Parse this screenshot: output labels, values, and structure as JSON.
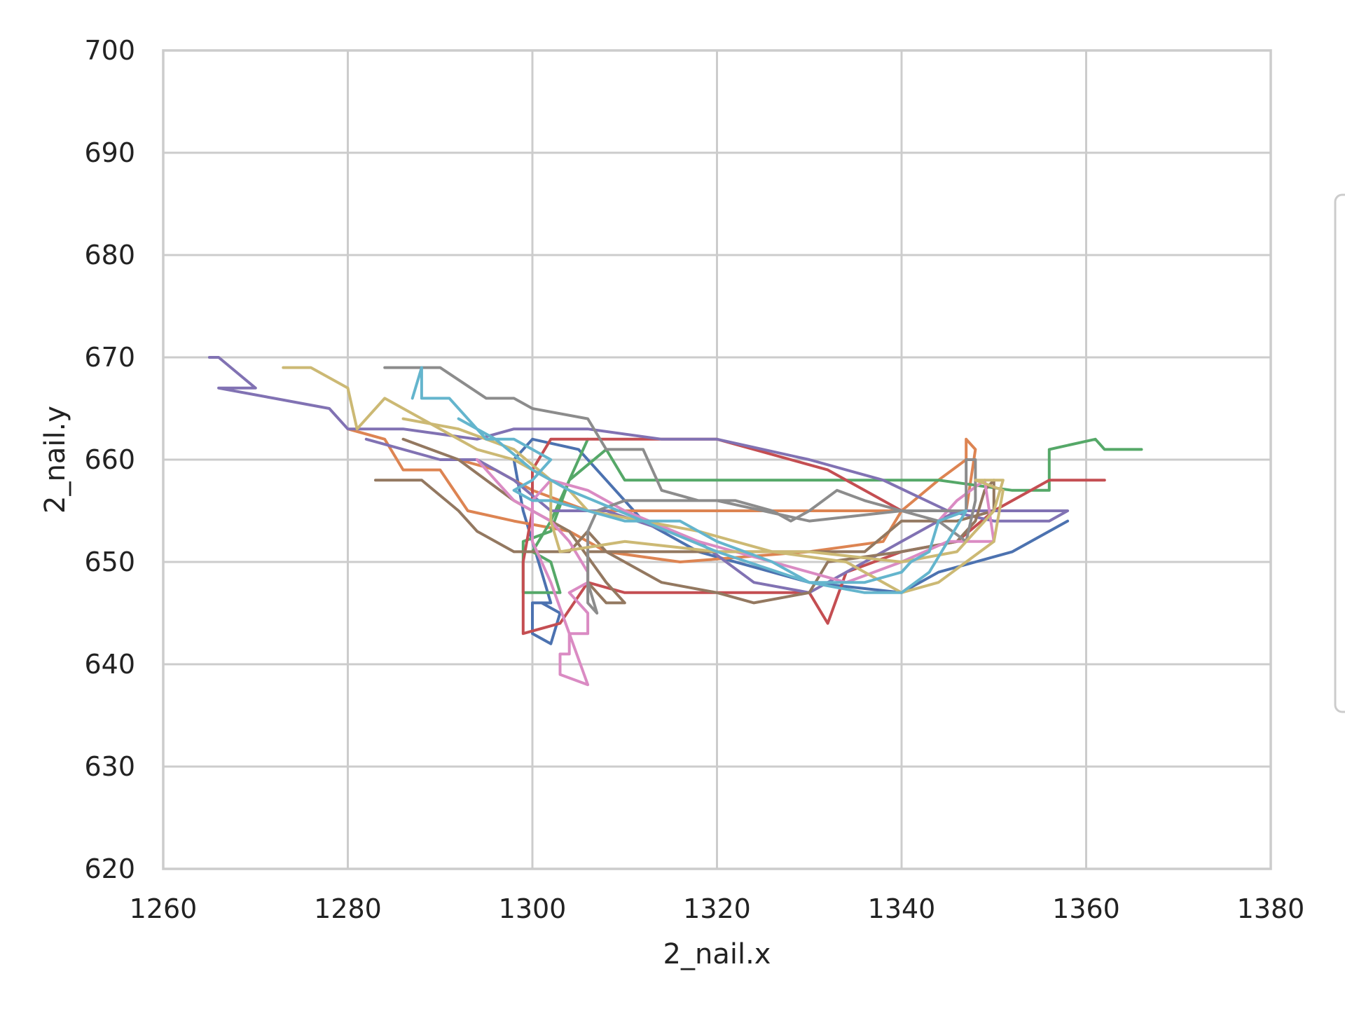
{
  "chart_data": {
    "type": "line",
    "title": "",
    "xlabel": "2_nail.x",
    "ylabel": "2_nail.y",
    "xlim": [
      1260,
      1380
    ],
    "ylim": [
      620,
      700
    ],
    "xticks": [
      1260,
      1280,
      1300,
      1320,
      1340,
      1360,
      1380
    ],
    "yticks": [
      620,
      630,
      640,
      650,
      660,
      670,
      680,
      690,
      700
    ],
    "xtick_labels": [
      "1260",
      "1280",
      "1300",
      "1320",
      "1340",
      "1360",
      "1380"
    ],
    "ytick_labels": [
      "620",
      "630",
      "640",
      "650",
      "660",
      "670",
      "680",
      "690",
      "700"
    ],
    "grid": true,
    "legend_position": "right (entries cropped, not readable)",
    "colors": [
      "#4c72b0",
      "#dd8452",
      "#55a868",
      "#c44e52",
      "#8172b3",
      "#937860",
      "#da8bc3",
      "#8c8c8c",
      "#ccb974",
      "#64b5cd"
    ],
    "series": [
      {
        "color": "#4c72b0",
        "points": [
          [
            1358,
            654
          ],
          [
            1352,
            651
          ],
          [
            1348,
            650
          ],
          [
            1344,
            649
          ],
          [
            1340,
            647
          ],
          [
            1330,
            648
          ],
          [
            1318,
            651
          ],
          [
            1312,
            654
          ],
          [
            1308,
            658
          ],
          [
            1305,
            661
          ],
          [
            1300,
            662
          ],
          [
            1298,
            660
          ],
          [
            1299,
            655
          ],
          [
            1301,
            649
          ],
          [
            1302,
            646
          ],
          [
            1300,
            646
          ],
          [
            1300,
            643
          ],
          [
            1302,
            642
          ],
          [
            1303,
            645
          ],
          [
            1301,
            646
          ]
        ]
      },
      {
        "color": "#dd8452",
        "points": [
          [
            1280,
            663
          ],
          [
            1284,
            662
          ],
          [
            1286,
            659
          ],
          [
            1290,
            659
          ],
          [
            1293,
            655
          ],
          [
            1298,
            654
          ],
          [
            1304,
            653
          ],
          [
            1308,
            651
          ],
          [
            1316,
            650
          ],
          [
            1330,
            651
          ],
          [
            1338,
            652
          ],
          [
            1340,
            655
          ],
          [
            1344,
            658
          ],
          [
            1347,
            660
          ],
          [
            1347,
            662
          ],
          [
            1348,
            661
          ],
          [
            1347,
            655
          ],
          [
            1340,
            655
          ],
          [
            1320,
            655
          ],
          [
            1306,
            655
          ],
          [
            1300,
            657
          ],
          [
            1296,
            659
          ],
          [
            1292,
            660
          ]
        ]
      },
      {
        "color": "#55a868",
        "points": [
          [
            1366,
            661
          ],
          [
            1362,
            661
          ],
          [
            1361,
            662
          ],
          [
            1356,
            661
          ],
          [
            1356,
            657
          ],
          [
            1352,
            657
          ],
          [
            1344,
            658
          ],
          [
            1340,
            658
          ],
          [
            1330,
            658
          ],
          [
            1320,
            658
          ],
          [
            1310,
            658
          ],
          [
            1308,
            661
          ],
          [
            1304,
            658
          ],
          [
            1302,
            653
          ],
          [
            1299,
            652
          ],
          [
            1299,
            647
          ],
          [
            1303,
            647
          ],
          [
            1302,
            650
          ],
          [
            1300,
            651
          ],
          [
            1302,
            654
          ],
          [
            1304,
            658
          ],
          [
            1306,
            662
          ]
        ]
      },
      {
        "color": "#c44e52",
        "points": [
          [
            1362,
            658
          ],
          [
            1359,
            658
          ],
          [
            1356,
            658
          ],
          [
            1350,
            655
          ],
          [
            1346,
            655
          ],
          [
            1340,
            655
          ],
          [
            1338,
            656
          ],
          [
            1332,
            659
          ],
          [
            1320,
            662
          ],
          [
            1310,
            662
          ],
          [
            1302,
            662
          ],
          [
            1300,
            659
          ],
          [
            1300,
            655
          ],
          [
            1299,
            650
          ],
          [
            1299,
            646
          ],
          [
            1299,
            643
          ],
          [
            1303,
            644
          ],
          [
            1306,
            648
          ],
          [
            1310,
            647
          ],
          [
            1320,
            647
          ],
          [
            1330,
            647
          ],
          [
            1332,
            644
          ],
          [
            1334,
            649
          ],
          [
            1340,
            651
          ],
          [
            1346,
            652
          ],
          [
            1350,
            655
          ]
        ]
      },
      {
        "color": "#8172b3",
        "points": [
          [
            1265,
            670
          ],
          [
            1266,
            670
          ],
          [
            1270,
            667
          ],
          [
            1266,
            667
          ],
          [
            1272,
            666
          ],
          [
            1278,
            665
          ],
          [
            1280,
            663
          ],
          [
            1286,
            663
          ],
          [
            1294,
            662
          ],
          [
            1298,
            663
          ],
          [
            1306,
            663
          ],
          [
            1314,
            662
          ],
          [
            1320,
            662
          ],
          [
            1330,
            660
          ],
          [
            1338,
            658
          ],
          [
            1345,
            655
          ],
          [
            1350,
            654
          ],
          [
            1356,
            654
          ],
          [
            1358,
            655
          ],
          [
            1346,
            655
          ],
          [
            1340,
            652
          ],
          [
            1334,
            649
          ],
          [
            1330,
            647
          ],
          [
            1324,
            648
          ],
          [
            1318,
            652
          ],
          [
            1308,
            655
          ],
          [
            1302,
            655
          ],
          [
            1298,
            658
          ],
          [
            1294,
            660
          ],
          [
            1290,
            660
          ],
          [
            1282,
            662
          ]
        ]
      },
      {
        "color": "#937860",
        "points": [
          [
            1283,
            658
          ],
          [
            1288,
            658
          ],
          [
            1292,
            655
          ],
          [
            1294,
            653
          ],
          [
            1298,
            651
          ],
          [
            1300,
            651
          ],
          [
            1304,
            651
          ],
          [
            1306,
            653
          ],
          [
            1308,
            651
          ],
          [
            1310,
            650
          ],
          [
            1314,
            648
          ],
          [
            1320,
            647
          ],
          [
            1324,
            646
          ],
          [
            1330,
            647
          ],
          [
            1332,
            650
          ],
          [
            1340,
            651
          ],
          [
            1346,
            652
          ],
          [
            1348,
            654
          ],
          [
            1349,
            657
          ],
          [
            1350,
            658
          ],
          [
            1350,
            655
          ],
          [
            1346,
            654
          ],
          [
            1340,
            654
          ],
          [
            1336,
            651
          ],
          [
            1320,
            651
          ],
          [
            1306,
            651
          ],
          [
            1306,
            648
          ],
          [
            1308,
            646
          ],
          [
            1310,
            646
          ],
          [
            1308,
            648
          ],
          [
            1304,
            653
          ],
          [
            1298,
            656
          ],
          [
            1292,
            660
          ],
          [
            1286,
            662
          ]
        ]
      },
      {
        "color": "#da8bc3",
        "points": [
          [
            1294,
            660
          ],
          [
            1296,
            658
          ],
          [
            1298,
            656
          ],
          [
            1300,
            655
          ],
          [
            1302,
            654
          ],
          [
            1304,
            652
          ],
          [
            1306,
            649
          ],
          [
            1306,
            648
          ],
          [
            1304,
            647
          ],
          [
            1306,
            645
          ],
          [
            1306,
            643
          ],
          [
            1304,
            643
          ],
          [
            1304,
            641
          ],
          [
            1303,
            641
          ],
          [
            1303,
            639
          ],
          [
            1306,
            638
          ],
          [
            1304,
            643
          ],
          [
            1302,
            648
          ],
          [
            1300,
            652
          ],
          [
            1300,
            656
          ],
          [
            1302,
            658
          ],
          [
            1306,
            657
          ],
          [
            1310,
            655
          ],
          [
            1318,
            652
          ],
          [
            1326,
            650
          ],
          [
            1334,
            648
          ],
          [
            1340,
            650
          ],
          [
            1345,
            652
          ],
          [
            1350,
            652
          ],
          [
            1349,
            658
          ],
          [
            1346,
            656
          ],
          [
            1344,
            654
          ]
        ]
      },
      {
        "color": "#8c8c8c",
        "points": [
          [
            1284,
            669
          ],
          [
            1287,
            669
          ],
          [
            1290,
            669
          ],
          [
            1295,
            666
          ],
          [
            1298,
            666
          ],
          [
            1300,
            665
          ],
          [
            1306,
            664
          ],
          [
            1308,
            661
          ],
          [
            1310,
            661
          ],
          [
            1312,
            661
          ],
          [
            1314,
            657
          ],
          [
            1318,
            656
          ],
          [
            1322,
            656
          ],
          [
            1326,
            655
          ],
          [
            1328,
            654
          ],
          [
            1330,
            655
          ],
          [
            1333,
            657
          ],
          [
            1336,
            656
          ],
          [
            1340,
            655
          ],
          [
            1344,
            654
          ],
          [
            1347,
            652
          ],
          [
            1348,
            656
          ],
          [
            1348,
            660
          ],
          [
            1347,
            660
          ],
          [
            1347,
            655
          ],
          [
            1340,
            655
          ],
          [
            1330,
            654
          ],
          [
            1320,
            656
          ],
          [
            1310,
            656
          ],
          [
            1307,
            655
          ],
          [
            1306,
            653
          ],
          [
            1306,
            650
          ],
          [
            1306,
            646
          ],
          [
            1307,
            645
          ],
          [
            1306,
            648
          ]
        ]
      },
      {
        "color": "#ccb974",
        "points": [
          [
            1273,
            669
          ],
          [
            1276,
            669
          ],
          [
            1280,
            667
          ],
          [
            1281,
            663
          ],
          [
            1284,
            666
          ],
          [
            1290,
            663
          ],
          [
            1294,
            661
          ],
          [
            1298,
            660
          ],
          [
            1300,
            659
          ],
          [
            1304,
            657
          ],
          [
            1306,
            655
          ],
          [
            1312,
            654
          ],
          [
            1318,
            653
          ],
          [
            1326,
            651
          ],
          [
            1334,
            650
          ],
          [
            1340,
            647
          ],
          [
            1344,
            648
          ],
          [
            1347,
            650
          ],
          [
            1350,
            652
          ],
          [
            1351,
            657
          ],
          [
            1348,
            658
          ],
          [
            1351,
            658
          ],
          [
            1350,
            655
          ],
          [
            1346,
            651
          ],
          [
            1340,
            650
          ],
          [
            1330,
            651
          ],
          [
            1320,
            651
          ],
          [
            1310,
            652
          ],
          [
            1303,
            651
          ],
          [
            1302,
            654
          ],
          [
            1302,
            658
          ],
          [
            1298,
            661
          ],
          [
            1292,
            663
          ],
          [
            1286,
            664
          ]
        ]
      },
      {
        "color": "#64b5cd",
        "points": [
          [
            1287,
            666
          ],
          [
            1288,
            669
          ],
          [
            1288,
            666
          ],
          [
            1291,
            666
          ],
          [
            1295,
            662
          ],
          [
            1298,
            662
          ],
          [
            1300,
            661
          ],
          [
            1302,
            660
          ],
          [
            1300,
            658
          ],
          [
            1298,
            657
          ],
          [
            1300,
            656
          ],
          [
            1302,
            656
          ],
          [
            1306,
            655
          ],
          [
            1310,
            654
          ],
          [
            1316,
            654
          ],
          [
            1320,
            652
          ],
          [
            1326,
            650
          ],
          [
            1330,
            648
          ],
          [
            1336,
            647
          ],
          [
            1340,
            647
          ],
          [
            1343,
            649
          ],
          [
            1345,
            652
          ],
          [
            1347,
            655
          ],
          [
            1344,
            654
          ],
          [
            1343,
            651
          ],
          [
            1341,
            650
          ],
          [
            1340,
            649
          ],
          [
            1336,
            648
          ],
          [
            1330,
            648
          ],
          [
            1320,
            651
          ],
          [
            1312,
            654
          ],
          [
            1304,
            657
          ],
          [
            1300,
            659
          ],
          [
            1296,
            662
          ],
          [
            1292,
            664
          ]
        ]
      }
    ]
  }
}
